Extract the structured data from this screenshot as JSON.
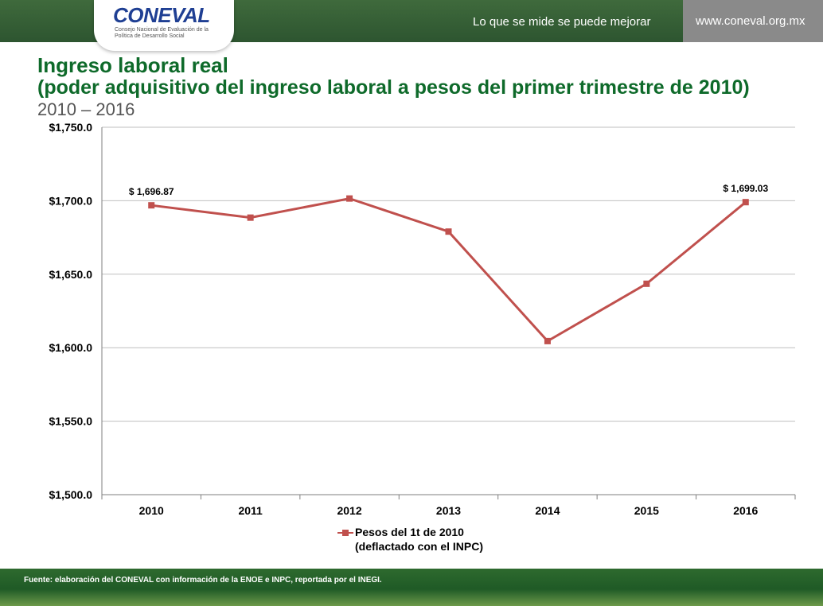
{
  "header": {
    "logo_text": "CONEVAL",
    "logo_subtitle": "Consejo Nacional de Evaluación de la Política de Desarrollo Social",
    "slogan": "Lo que se mide se puede mejorar",
    "url": "www.coneval.org.mx"
  },
  "titles": {
    "title": "Ingreso laboral real",
    "subtitle": "(poder adquisitivo del ingreso laboral a pesos del primer trimestre de 2010)",
    "period": "2010 – 2016"
  },
  "chart_data": {
    "type": "line",
    "categories": [
      "2010",
      "2011",
      "2012",
      "2013",
      "2014",
      "2015",
      "2016"
    ],
    "series": [
      {
        "name": "Pesos del 1t de 2010\n(deflactado con el INPC)",
        "values": [
          1696.87,
          1688.5,
          1701.5,
          1679.0,
          1604.5,
          1643.5,
          1699.03
        ],
        "color": "#c0504d"
      }
    ],
    "ylim": [
      1500,
      1750
    ],
    "yticks": [
      1500,
      1550,
      1600,
      1650,
      1700,
      1750
    ],
    "ytick_labels": [
      "$1,500.0",
      "$1,550.0",
      "$1,600.0",
      "$1,650.0",
      "$1,700.0",
      "$1,750.0"
    ],
    "data_labels": [
      {
        "index": 0,
        "text": "$ 1,696.87"
      },
      {
        "index": 6,
        "text": "$ 1,699.03"
      }
    ],
    "grid": true,
    "legend_position": "bottom"
  },
  "footer": {
    "source": "Fuente: elaboración del CONEVAL con información de la ENOE e INPC, reportada por el INEGI."
  }
}
